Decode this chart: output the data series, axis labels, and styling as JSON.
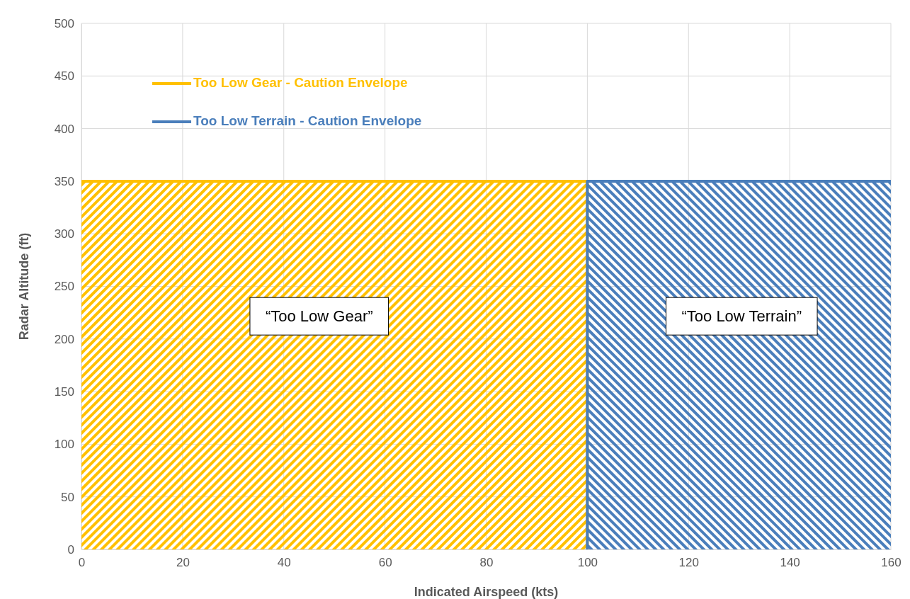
{
  "chart_data": {
    "type": "area",
    "xlabel": "Indicated Airspeed (kts)",
    "ylabel": "Radar Altitude (ft)",
    "xlim": [
      0,
      160
    ],
    "xticks": [
      0,
      20,
      40,
      60,
      80,
      100,
      120,
      140,
      160
    ],
    "ylim": [
      0,
      500
    ],
    "yticks": [
      0,
      50,
      100,
      150,
      200,
      250,
      300,
      350,
      400,
      450,
      500
    ],
    "grid": true,
    "legend": "top left",
    "marker": "none",
    "line_style": "solid",
    "series": [
      {
        "name": "Too Low Gear - Caution Envelope",
        "color": "#ffc000",
        "x": [
          0,
          100,
          100
        ],
        "values": [
          350,
          350,
          0
        ]
      },
      {
        "name": "Too Low Terrain - Caution Envelope",
        "color": "#4a7ebb",
        "x": [
          100,
          100,
          160
        ],
        "values": [
          0,
          350,
          350
        ]
      }
    ],
    "annotations": [
      "“Too Low Gear”",
      "“Too Low Terrain”"
    ]
  }
}
